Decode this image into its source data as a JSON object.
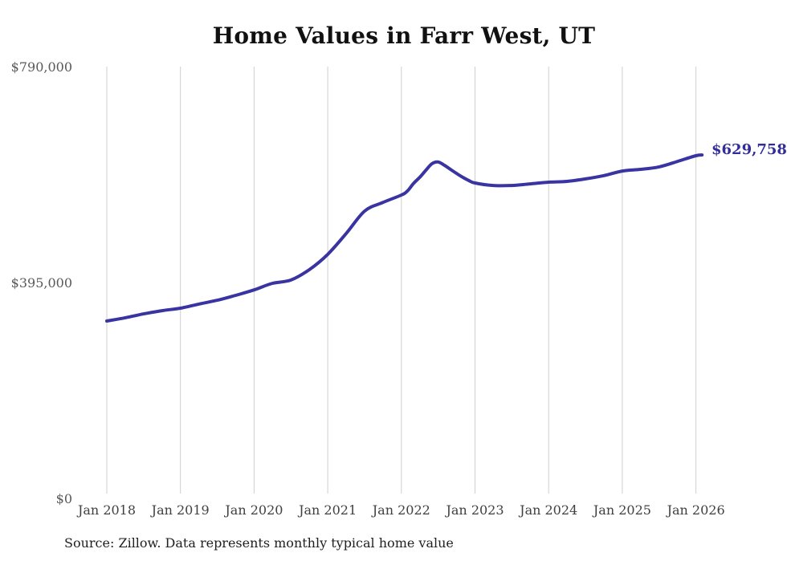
{
  "colors": {
    "line": "#3934a2",
    "end_label": "#322d99",
    "grid": "#cfcfcf",
    "x_axis_text": "#404040",
    "y_axis_text": "#595959",
    "title_text": "#111111",
    "background": "#ffffff"
  },
  "chart_data": {
    "type": "line",
    "title": "Home Values in Farr West, UT",
    "source_note": "Source: Zillow. Data represents monthly typical home value",
    "end_annotation": "$629,758",
    "legend": "none",
    "grid": "vertical-only",
    "ylim": [
      0,
      790000
    ],
    "x_range": [
      "Jan 2018",
      "Feb 2026"
    ],
    "y_tick_labels": [
      {
        "label": "$0",
        "value": 0
      },
      {
        "label": "$395,000",
        "value": 395000
      },
      {
        "label": "$790,000",
        "value": 790000
      }
    ],
    "x_tick_labels": [
      "Jan 2018",
      "Jan 2019",
      "Jan 2020",
      "Jan 2021",
      "Jan 2022",
      "Jan 2023",
      "Jan 2024",
      "Jan 2025",
      "Jan 2026"
    ],
    "series": [
      {
        "name": "Monthly typical home value",
        "points": [
          {
            "date": "Jan 2018",
            "value": 326000
          },
          {
            "date": "Apr 2018",
            "value": 332000
          },
          {
            "date": "Jul 2018",
            "value": 339000
          },
          {
            "date": "Oct 2018",
            "value": 345000
          },
          {
            "date": "Jan 2019",
            "value": 349500
          },
          {
            "date": "Apr 2019",
            "value": 357000
          },
          {
            "date": "Jul 2019",
            "value": 364000
          },
          {
            "date": "Oct 2019",
            "value": 373000
          },
          {
            "date": "Jan 2020",
            "value": 383000
          },
          {
            "date": "Apr 2020",
            "value": 395000
          },
          {
            "date": "Jul 2020",
            "value": 401000
          },
          {
            "date": "Oct 2020",
            "value": 420000
          },
          {
            "date": "Jan 2021",
            "value": 448000
          },
          {
            "date": "Apr 2021",
            "value": 486000
          },
          {
            "date": "Jul 2021",
            "value": 527000
          },
          {
            "date": "Oct 2021",
            "value": 543000
          },
          {
            "date": "Jan 2022",
            "value": 556500
          },
          {
            "date": "Feb 2022",
            "value": 564000
          },
          {
            "date": "Mar 2022",
            "value": 578000
          },
          {
            "date": "Apr 2022",
            "value": 589000
          },
          {
            "date": "May 2022",
            "value": 602000
          },
          {
            "date": "Jun 2022",
            "value": 614000
          },
          {
            "date": "Jul 2022",
            "value": 617000
          },
          {
            "date": "Aug 2022",
            "value": 611000
          },
          {
            "date": "Sep 2022",
            "value": 603500
          },
          {
            "date": "Oct 2022",
            "value": 596000
          },
          {
            "date": "Nov 2022",
            "value": 589000
          },
          {
            "date": "Dec 2022",
            "value": 583000
          },
          {
            "date": "Jan 2023",
            "value": 578500
          },
          {
            "date": "Apr 2023",
            "value": 574000
          },
          {
            "date": "Jul 2023",
            "value": 574000
          },
          {
            "date": "Oct 2023",
            "value": 577000
          },
          {
            "date": "Jan 2024",
            "value": 580000
          },
          {
            "date": "Apr 2024",
            "value": 581500
          },
          {
            "date": "Jul 2024",
            "value": 586000
          },
          {
            "date": "Oct 2024",
            "value": 592000
          },
          {
            "date": "Jan 2025",
            "value": 600500
          },
          {
            "date": "Apr 2025",
            "value": 603500
          },
          {
            "date": "Jul 2025",
            "value": 608000
          },
          {
            "date": "Oct 2025",
            "value": 618000
          },
          {
            "date": "Jan 2026",
            "value": 628500
          },
          {
            "date": "Feb 2026",
            "value": 629758
          }
        ]
      }
    ]
  }
}
